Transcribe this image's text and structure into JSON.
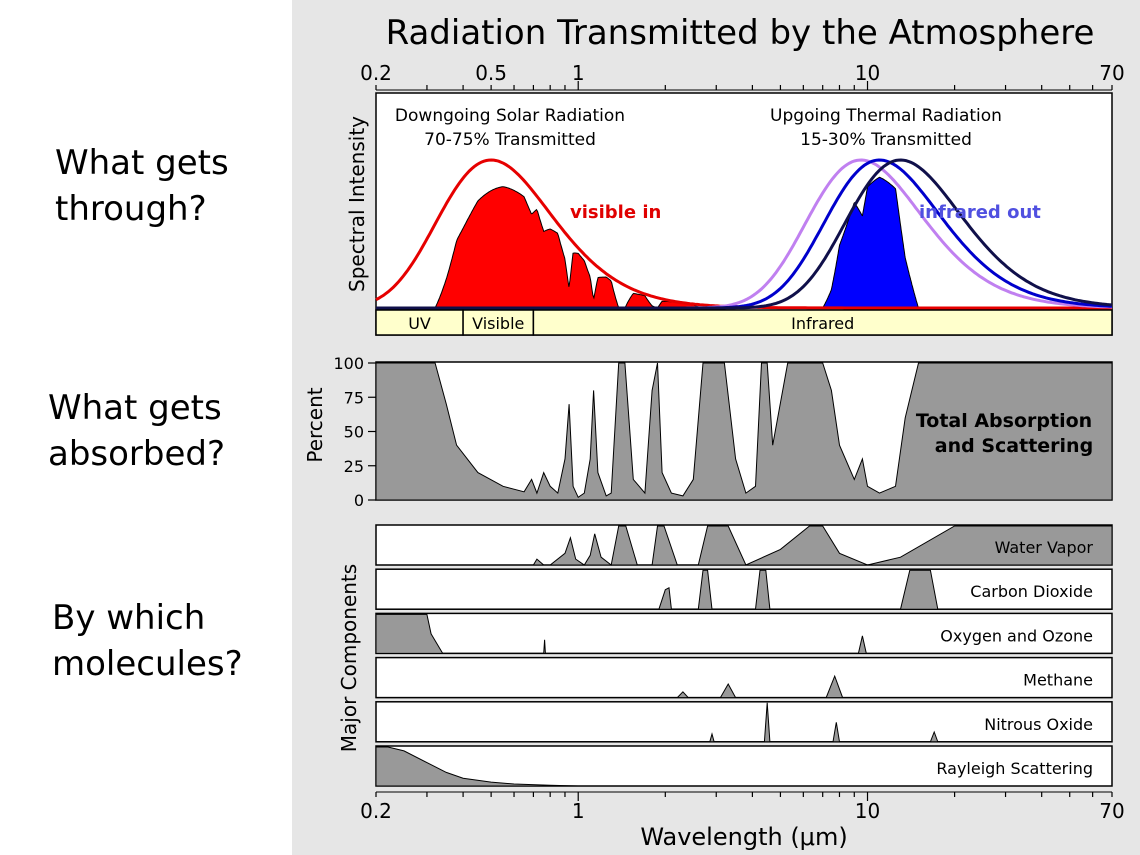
{
  "sidebar": {
    "through": "What gets\nthrough?",
    "absorbed": "What gets\nabsorbed?",
    "molecules": "By which\nmolecules?"
  },
  "chart_data": {
    "type": "area",
    "title": "Radiation Transmitted by the Atmosphere",
    "xlabel": "Wavelength (μm)",
    "x_scale": "log",
    "xlim": [
      0.2,
      70
    ],
    "top_ticks": [
      0.2,
      0.5,
      1,
      10,
      70
    ],
    "bottom_ticks": [
      0.2,
      1,
      10,
      70
    ],
    "panels": [
      {
        "name": "spectral",
        "ylabel": "Spectral Intensity",
        "annotations": {
          "solar_line1": "Downgoing Solar Radiation",
          "solar_line2": "70-75% Transmitted",
          "thermal_line1": "Upgoing Thermal Radiation",
          "thermal_line2": "15-30% Transmitted",
          "visible_in": "visible in",
          "infrared_out": "infrared out"
        },
        "bands": [
          {
            "label": "UV",
            "from": 0.2,
            "to": 0.4
          },
          {
            "label": "Visible",
            "from": 0.4,
            "to": 0.7
          },
          {
            "label": "Infrared",
            "from": 0.7,
            "to": 70
          }
        ],
        "curves": [
          {
            "kind": "blackbody",
            "peak": 0.5,
            "color": "#e60000"
          },
          {
            "kind": "blackbody",
            "peak": 9.5,
            "color": "#c080f0"
          },
          {
            "kind": "blackbody",
            "peak": 11,
            "color": "#0000cc"
          },
          {
            "kind": "blackbody",
            "peak": 13,
            "color": "#10104a"
          }
        ],
        "transmitted_colors": {
          "solar": "#ff0000",
          "thermal": "#0000ff"
        }
      },
      {
        "name": "total",
        "ylabel": "Percent",
        "ylim": [
          0,
          100
        ],
        "yticks": [
          0,
          25,
          50,
          75,
          100
        ],
        "label_line1": "Total Absorption",
        "label_line2": "and Scattering",
        "fill": "#999999",
        "x": [
          0.2,
          0.32,
          0.35,
          0.38,
          0.45,
          0.55,
          0.65,
          0.69,
          0.72,
          0.76,
          0.8,
          0.85,
          0.9,
          0.93,
          0.96,
          1.0,
          1.05,
          1.1,
          1.13,
          1.17,
          1.25,
          1.3,
          1.38,
          1.45,
          1.55,
          1.7,
          1.8,
          1.88,
          1.95,
          2.1,
          2.3,
          2.5,
          2.7,
          3.2,
          3.5,
          3.8,
          4.1,
          4.3,
          4.5,
          4.7,
          5.3,
          6.3,
          7.0,
          7.5,
          8.0,
          9.0,
          9.6,
          10.0,
          11.0,
          12.5,
          13.5,
          15.0,
          20.0,
          70.0
        ],
        "y": [
          100,
          100,
          70,
          40,
          20,
          10,
          6,
          15,
          5,
          20,
          10,
          5,
          30,
          70,
          10,
          2,
          5,
          30,
          80,
          20,
          3,
          5,
          100,
          100,
          15,
          5,
          80,
          100,
          20,
          5,
          3,
          15,
          100,
          100,
          30,
          5,
          10,
          100,
          100,
          40,
          100,
          100,
          100,
          80,
          40,
          15,
          30,
          10,
          5,
          10,
          60,
          100,
          100,
          100
        ]
      },
      {
        "name": "components",
        "ylabel": "Major Components",
        "fill": "#999999",
        "components": [
          {
            "name": "Water Vapor",
            "x": [
              0.2,
              0.6,
              0.7,
              0.72,
              0.76,
              0.8,
              0.9,
              0.94,
              0.98,
              1.05,
              1.1,
              1.14,
              1.2,
              1.3,
              1.38,
              1.46,
              1.6,
              1.8,
              1.88,
              1.98,
              2.2,
              2.6,
              2.8,
              3.3,
              3.8,
              5.0,
              6.3,
              7.0,
              8.0,
              10.0,
              13.0,
              20.0,
              70.0
            ],
            "y": [
              0,
              0,
              0,
              15,
              0,
              0,
              30,
              70,
              15,
              0,
              25,
              80,
              20,
              0,
              100,
              100,
              0,
              0,
              100,
              100,
              0,
              0,
              100,
              100,
              0,
              40,
              100,
              100,
              30,
              0,
              20,
              100,
              100
            ]
          },
          {
            "name": "Carbon Dioxide",
            "x": [
              0.2,
              1.9,
              2.0,
              2.06,
              2.1,
              2.6,
              2.7,
              2.8,
              2.9,
              4.1,
              4.25,
              4.45,
              4.6,
              13.0,
              14.0,
              16.5,
              17.5,
              70.0
            ],
            "y": [
              0,
              0,
              50,
              55,
              0,
              0,
              100,
              100,
              0,
              0,
              100,
              100,
              0,
              0,
              100,
              100,
              0,
              0
            ]
          },
          {
            "name": "Oxygen and Ozone",
            "x": [
              0.2,
              0.3,
              0.31,
              0.34,
              0.76,
              0.765,
              0.77,
              9.3,
              9.6,
              9.9,
              70.0
            ],
            "y": [
              100,
              100,
              50,
              0,
              0,
              35,
              0,
              0,
              45,
              0,
              0
            ]
          },
          {
            "name": "Methane",
            "x": [
              0.2,
              2.2,
              2.3,
              2.4,
              3.1,
              3.3,
              3.5,
              7.2,
              7.7,
              8.2,
              70.0
            ],
            "y": [
              0,
              0,
              15,
              0,
              0,
              35,
              0,
              0,
              55,
              0,
              0
            ]
          },
          {
            "name": "Nitrous Oxide",
            "x": [
              0.2,
              2.85,
              2.9,
              2.95,
              4.4,
              4.5,
              4.6,
              7.6,
              7.8,
              8.0,
              16.5,
              17.0,
              17.5,
              70.0
            ],
            "y": [
              0,
              0,
              20,
              0,
              0,
              100,
              0,
              0,
              50,
              0,
              0,
              25,
              0,
              0
            ]
          },
          {
            "name": "Rayleigh Scattering",
            "x": [
              0.2,
              0.22,
              0.25,
              0.3,
              0.35,
              0.4,
              0.5,
              0.6,
              0.8,
              1.0,
              1.2,
              70.0
            ],
            "y": [
              100,
              100,
              90,
              60,
              35,
              20,
              10,
              5,
              2,
              0,
              0,
              0
            ]
          }
        ]
      }
    ]
  }
}
